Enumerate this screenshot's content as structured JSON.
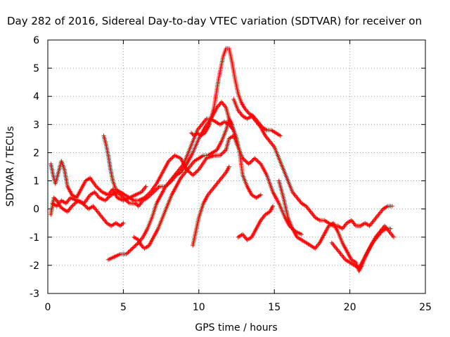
{
  "chart_data": {
    "type": "scatter",
    "title": "Day 282 of 2016, Sidereal Day-to-day VTEC variation (SDTVAR) for receiver on",
    "xlabel": "GPS time / hours",
    "ylabel": "SDTVAR / TECUs",
    "xlim": [
      0,
      25
    ],
    "ylim": [
      -3,
      6
    ],
    "xticks": [
      "0",
      "5",
      "10",
      "15",
      "20",
      "25"
    ],
    "yticks": [
      "-3",
      "-2",
      "-1",
      "0",
      "1",
      "2",
      "3",
      "4",
      "5",
      "6"
    ],
    "grid": true,
    "marker": "+",
    "color": "#ff0000",
    "series": [
      {
        "x": [
          0.2,
          0.4,
          0.6,
          0.8,
          1.0,
          1.3,
          1.6,
          2.0,
          2.4,
          2.8,
          3.1,
          3.4,
          3.8,
          4.2,
          4.6,
          5.0,
          5.4,
          5.8,
          6.0,
          6.3,
          6.6,
          7.0,
          7.4,
          7.8,
          8.2,
          8.5,
          8.8,
          9.2,
          9.6,
          10.0,
          10.4,
          10.8,
          11.2,
          11.5,
          11.8,
          12.0,
          12.2
        ],
        "y": [
          -0.2,
          0.4,
          0.3,
          0.1,
          0.0,
          -0.1,
          0.1,
          0.3,
          0.2,
          0.5,
          0.6,
          0.4,
          0.3,
          0.5,
          0.6,
          0.4,
          0.2,
          0.2,
          0.1,
          0.3,
          0.4,
          0.6,
          0.8,
          0.8,
          1.0,
          1.2,
          1.3,
          1.6,
          2.0,
          2.5,
          2.9,
          3.2,
          3.6,
          3.8,
          3.6,
          3.2,
          2.9
        ]
      },
      {
        "x": [
          0.2,
          0.35,
          0.5,
          0.7,
          0.9,
          1.1,
          1.3,
          1.6,
          1.9,
          2.2,
          2.5,
          2.8,
          3.2,
          3.6,
          4.0,
          4.3,
          4.6,
          5.0,
          5.4,
          5.8,
          6.2,
          6.5
        ],
        "y": [
          1.6,
          1.2,
          0.9,
          1.3,
          1.7,
          1.4,
          0.8,
          0.5,
          0.4,
          0.7,
          1.0,
          1.1,
          0.8,
          0.6,
          0.5,
          0.7,
          0.4,
          0.3,
          0.4,
          0.5,
          0.6,
          0.8
        ]
      },
      {
        "x": [
          0.3,
          0.6,
          0.9,
          1.2,
          1.5,
          1.9,
          2.3,
          2.7,
          3.0,
          3.3,
          3.6,
          3.9,
          4.2,
          4.5,
          4.8,
          5.0
        ],
        "y": [
          0.2,
          0.1,
          0.3,
          0.2,
          0.4,
          0.3,
          0.2,
          0.0,
          0.1,
          -0.1,
          -0.3,
          -0.5,
          -0.6,
          -0.5,
          -0.6,
          -0.5
        ]
      },
      {
        "x": [
          3.7,
          3.85,
          4.0,
          4.15,
          4.3,
          4.5,
          4.8,
          5.1,
          5.4,
          5.7,
          6.0,
          6.4,
          6.8,
          7.2,
          7.6,
          8.0,
          8.4,
          8.8,
          9.2,
          9.6,
          10.0,
          10.5,
          11.0,
          11.4,
          11.8,
          12.0,
          12.3,
          12.6,
          12.9,
          13.3,
          13.7,
          14.1,
          14.5,
          14.9,
          15.3,
          15.7,
          16.0,
          16.4,
          16.8
        ],
        "y": [
          2.6,
          2.3,
          1.9,
          1.4,
          1.0,
          0.7,
          0.6,
          0.5,
          0.4,
          0.3,
          0.3,
          0.4,
          0.6,
          0.9,
          1.3,
          1.7,
          1.9,
          1.8,
          1.4,
          1.2,
          1.4,
          1.8,
          1.9,
          1.9,
          2.1,
          2.5,
          2.6,
          2.2,
          1.8,
          1.6,
          1.8,
          1.6,
          1.2,
          0.6,
          0.2,
          -0.3,
          -0.6,
          -0.8,
          -0.9
        ]
      },
      {
        "x": [
          4.0,
          4.4,
          4.8,
          5.2,
          5.6,
          6.0,
          6.3,
          6.6,
          6.9,
          7.2,
          7.5,
          7.8,
          8.1,
          8.4,
          8.7,
          9.0,
          9.3,
          9.6,
          9.9,
          10.2,
          10.5,
          10.8,
          11.1,
          11.4,
          11.7,
          12.0,
          12.3,
          12.5,
          12.7,
          12.9,
          13.2,
          13.5,
          13.8,
          14.1
        ],
        "y": [
          -1.8,
          -1.7,
          -1.6,
          -1.6,
          -1.4,
          -1.2,
          -1.0,
          -0.7,
          -0.3,
          0.2,
          0.5,
          0.8,
          1.0,
          1.2,
          1.4,
          1.6,
          2.0,
          2.4,
          2.8,
          3.0,
          3.2,
          3.2,
          3.1,
          3.0,
          3.1,
          3.0,
          2.8,
          2.5,
          2.0,
          1.2,
          0.8,
          0.5,
          0.4,
          0.5
        ]
      },
      {
        "x": [
          5.7,
          6.0,
          6.2,
          6.4,
          6.7,
          7.0,
          7.3,
          7.6,
          7.9,
          8.2,
          8.5,
          8.8,
          9.1,
          9.4,
          9.7,
          10.0,
          10.3,
          10.6,
          10.9,
          11.2,
          11.5,
          11.8,
          12.0,
          12.2,
          12.4
        ],
        "y": [
          -1.0,
          -1.1,
          -1.3,
          -1.4,
          -1.3,
          -1.0,
          -0.7,
          -0.3,
          0.1,
          0.5,
          0.8,
          1.1,
          1.3,
          1.5,
          1.7,
          1.8,
          1.9,
          1.9,
          2.0,
          2.1,
          2.4,
          2.8,
          3.2,
          3.0,
          2.6
        ]
      },
      {
        "x": [
          9.5,
          9.7,
          9.9,
          10.1,
          10.4,
          10.7,
          11.0,
          11.3,
          11.6,
          11.8,
          12.0,
          12.2,
          12.4,
          12.6,
          12.8,
          13.0,
          13.3,
          13.6,
          13.9,
          14.2,
          14.5,
          14.8,
          15.1,
          15.4
        ],
        "y": [
          2.7,
          2.6,
          2.7,
          2.6,
          2.7,
          3.0,
          3.6,
          4.6,
          5.4,
          5.7,
          5.7,
          5.2,
          4.6,
          4.1,
          3.8,
          3.6,
          3.4,
          3.3,
          3.1,
          2.9,
          2.8,
          2.8,
          2.7,
          2.6
        ]
      },
      {
        "x": [
          12.3,
          12.6,
          12.9,
          13.2,
          13.5,
          13.8,
          14.1,
          14.4,
          14.7,
          15.0,
          15.3,
          15.6,
          15.9,
          16.2,
          16.5,
          16.8,
          17.1,
          17.4,
          17.7,
          18.0,
          18.3,
          18.6,
          18.9,
          19.2,
          19.5,
          19.8,
          20.1,
          20.4,
          20.7,
          21.0,
          21.3,
          21.6,
          21.9,
          22.2,
          22.5,
          22.8
        ],
        "y": [
          3.9,
          3.5,
          3.3,
          3.2,
          3.3,
          3.1,
          2.9,
          2.6,
          2.4,
          2.2,
          1.8,
          1.4,
          1.0,
          0.6,
          0.4,
          0.2,
          0.1,
          -0.1,
          -0.3,
          -0.4,
          -0.4,
          -0.5,
          -0.6,
          -0.6,
          -0.7,
          -0.5,
          -0.4,
          -0.6,
          -0.6,
          -0.5,
          -0.6,
          -0.4,
          -0.2,
          0.0,
          0.1,
          0.1
        ]
      },
      {
        "x": [
          9.6,
          9.8,
          10.0,
          10.3,
          10.6,
          10.9,
          11.2,
          11.5,
          11.8,
          12.0
        ],
        "y": [
          -1.3,
          -0.8,
          -0.3,
          0.2,
          0.5,
          0.7,
          0.9,
          1.1,
          1.3,
          1.5
        ]
      },
      {
        "x": [
          12.6,
          12.9,
          13.2,
          13.5,
          13.8,
          14.1,
          14.4,
          14.7,
          14.9
        ],
        "y": [
          -1.0,
          -0.9,
          -1.1,
          -1.0,
          -0.7,
          -0.4,
          -0.2,
          -0.1,
          0.1
        ]
      },
      {
        "x": [
          15.3,
          15.6,
          15.9,
          16.2,
          16.5,
          16.8,
          17.1,
          17.4,
          17.7,
          18.0,
          18.3,
          18.6,
          18.9,
          19.2,
          19.5,
          19.8,
          20.1,
          20.4,
          20.6,
          20.8,
          21.1,
          21.4,
          21.7,
          22.0,
          22.3,
          22.6,
          22.9
        ],
        "y": [
          1.0,
          0.4,
          -0.3,
          -0.7,
          -1.0,
          -1.1,
          -1.2,
          -1.3,
          -1.4,
          -1.2,
          -0.9,
          -0.6,
          -0.5,
          -0.8,
          -1.2,
          -1.5,
          -1.8,
          -1.9,
          -2.2,
          -2.0,
          -1.6,
          -1.3,
          -1.0,
          -0.8,
          -0.6,
          -0.8,
          -1.0
        ]
      },
      {
        "x": [
          18.8,
          19.1,
          19.4,
          19.7,
          20.0,
          20.3,
          20.6,
          20.9,
          21.2,
          21.5,
          21.8,
          22.1,
          22.4,
          22.7
        ],
        "y": [
          -1.2,
          -1.4,
          -1.6,
          -1.8,
          -1.9,
          -2.0,
          -2.1,
          -1.8,
          -1.5,
          -1.2,
          -1.0,
          -0.8,
          -0.7,
          -0.7
        ]
      }
    ]
  }
}
